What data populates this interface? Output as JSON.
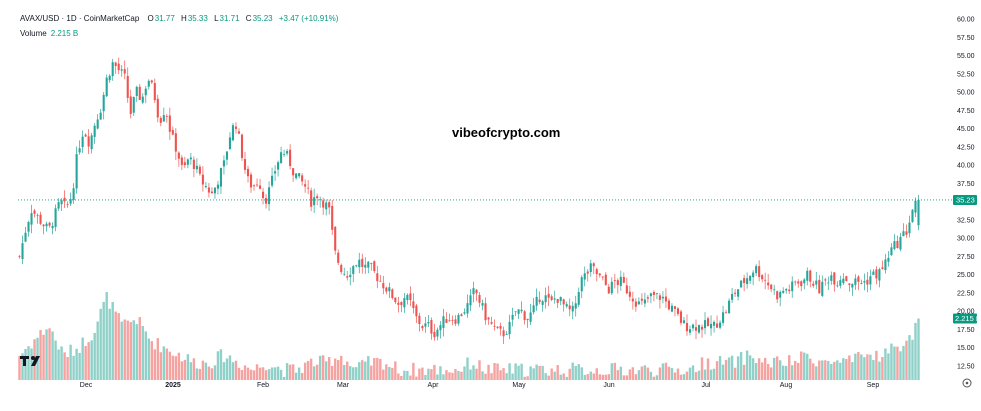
{
  "legend": {
    "symbol": "AVAX/USD · 1D · CoinMarketCap",
    "o_label": "O",
    "o": "31.77",
    "h_label": "H",
    "h": "35.33",
    "l_label": "L",
    "l": "31.71",
    "c_label": "C",
    "c": "35.23",
    "change": "+3.47 (+10.91%)",
    "volume_label": "Volume",
    "volume_value": "2.215 B"
  },
  "watermark": "vibeofcrypto.com",
  "colors": {
    "up": "#26a69a",
    "down": "#ef5350",
    "up_vol": "#8fd1c8",
    "down_vol": "#f5a3a1",
    "last_price": "#089981",
    "grid": "#ffffff"
  },
  "chart_data": {
    "type": "candlestick",
    "ylim": [
      10,
      60
    ],
    "y_ticks": [
      "60.00",
      "57.50",
      "55.00",
      "52.50",
      "50.00",
      "47.50",
      "45.00",
      "42.50",
      "40.00",
      "37.50",
      "35.00",
      "32.50",
      "30.00",
      "27.50",
      "25.00",
      "22.50",
      "20.00",
      "17.50",
      "15.00",
      "12.50"
    ],
    "x_ticks": [
      "Dec",
      "2025",
      "Feb",
      "Mar",
      "Apr",
      "May",
      "Jun",
      "Jul",
      "Aug",
      "Sep"
    ],
    "last_price_label": "35.23",
    "volume_label": "2.215 B",
    "close_path": [
      [
        0,
        27.5
      ],
      [
        4,
        31
      ],
      [
        8,
        34
      ],
      [
        12,
        33
      ],
      [
        16,
        32
      ],
      [
        20,
        31
      ],
      [
        24,
        33
      ],
      [
        28,
        35
      ],
      [
        32,
        34
      ],
      [
        36,
        36
      ],
      [
        40,
        42
      ],
      [
        44,
        45
      ],
      [
        48,
        43
      ],
      [
        52,
        46
      ],
      [
        56,
        48
      ],
      [
        60,
        52
      ],
      [
        64,
        54
      ],
      [
        68,
        53
      ],
      [
        72,
        52
      ],
      [
        76,
        47
      ],
      [
        80,
        50
      ],
      [
        84,
        49
      ],
      [
        88,
        52
      ],
      [
        92,
        50
      ],
      [
        96,
        46
      ],
      [
        100,
        48
      ],
      [
        104,
        44
      ],
      [
        108,
        42
      ],
      [
        112,
        39
      ],
      [
        116,
        41
      ],
      [
        120,
        40
      ],
      [
        124,
        38
      ],
      [
        128,
        37
      ],
      [
        132,
        36
      ],
      [
        136,
        38
      ],
      [
        140,
        40
      ],
      [
        144,
        44
      ],
      [
        148,
        46
      ],
      [
        152,
        42
      ],
      [
        156,
        38
      ],
      [
        160,
        37
      ],
      [
        164,
        38
      ],
      [
        168,
        35
      ],
      [
        172,
        37
      ],
      [
        176,
        40
      ],
      [
        180,
        42
      ],
      [
        184,
        41
      ],
      [
        188,
        39
      ],
      [
        192,
        38
      ],
      [
        196,
        37
      ],
      [
        200,
        35
      ],
      [
        204,
        36
      ],
      [
        208,
        35
      ],
      [
        212,
        34
      ],
      [
        216,
        28
      ],
      [
        220,
        26
      ],
      [
        224,
        25
      ],
      [
        228,
        26
      ],
      [
        232,
        27
      ],
      [
        236,
        26
      ],
      [
        240,
        26
      ],
      [
        244,
        25
      ],
      [
        248,
        24
      ],
      [
        252,
        23
      ],
      [
        256,
        22
      ],
      [
        260,
        21
      ],
      [
        264,
        22
      ],
      [
        268,
        21
      ],
      [
        272,
        19
      ],
      [
        276,
        18
      ],
      [
        280,
        18
      ],
      [
        284,
        17
      ],
      [
        288,
        18
      ],
      [
        292,
        19
      ],
      [
        296,
        19
      ],
      [
        300,
        19
      ],
      [
        304,
        20
      ],
      [
        308,
        21
      ],
      [
        312,
        23
      ],
      [
        316,
        21
      ],
      [
        320,
        19
      ],
      [
        324,
        18
      ],
      [
        328,
        17
      ],
      [
        332,
        17
      ],
      [
        336,
        18
      ],
      [
        340,
        20
      ],
      [
        344,
        20
      ],
      [
        348,
        19
      ],
      [
        352,
        20
      ],
      [
        356,
        22
      ],
      [
        360,
        22
      ],
      [
        364,
        21
      ],
      [
        368,
        22
      ],
      [
        372,
        21
      ],
      [
        376,
        20
      ],
      [
        380,
        20
      ],
      [
        384,
        24
      ],
      [
        388,
        25
      ],
      [
        392,
        26
      ],
      [
        396,
        25
      ],
      [
        400,
        24
      ],
      [
        404,
        23
      ],
      [
        408,
        24
      ],
      [
        412,
        24
      ],
      [
        416,
        23
      ],
      [
        420,
        22
      ],
      [
        424,
        21
      ],
      [
        428,
        21
      ],
      [
        432,
        22
      ],
      [
        436,
        22
      ],
      [
        440,
        22
      ],
      [
        444,
        21
      ],
      [
        448,
        20
      ],
      [
        452,
        19
      ],
      [
        456,
        18
      ],
      [
        460,
        18
      ],
      [
        464,
        18
      ],
      [
        468,
        18
      ],
      [
        472,
        18
      ],
      [
        476,
        18
      ],
      [
        480,
        19
      ],
      [
        484,
        20
      ],
      [
        488,
        22
      ],
      [
        492,
        23
      ],
      [
        496,
        24
      ],
      [
        500,
        25
      ],
      [
        504,
        26
      ],
      [
        508,
        25
      ],
      [
        512,
        24
      ],
      [
        516,
        23
      ],
      [
        520,
        22
      ],
      [
        524,
        23
      ],
      [
        528,
        23
      ],
      [
        532,
        24
      ],
      [
        536,
        24
      ],
      [
        540,
        25
      ],
      [
        544,
        24
      ],
      [
        548,
        23
      ],
      [
        552,
        24
      ],
      [
        556,
        25
      ],
      [
        560,
        24
      ],
      [
        564,
        25
      ],
      [
        568,
        24
      ],
      [
        572,
        24
      ],
      [
        576,
        24
      ],
      [
        580,
        24
      ],
      [
        584,
        25
      ],
      [
        588,
        25
      ],
      [
        592,
        26
      ],
      [
        596,
        28
      ],
      [
        600,
        29
      ],
      [
        604,
        30
      ],
      [
        608,
        31
      ],
      [
        612,
        34
      ],
      [
        616,
        35.2
      ]
    ],
    "volume_path": [
      [
        0,
        14
      ],
      [
        10,
        16
      ],
      [
        20,
        18
      ],
      [
        30,
        14
      ],
      [
        40,
        15
      ],
      [
        50,
        17
      ],
      [
        60,
        22
      ],
      [
        70,
        18
      ],
      [
        80,
        19
      ],
      [
        90,
        16
      ],
      [
        100,
        15
      ],
      [
        110,
        14
      ],
      [
        120,
        13
      ],
      [
        130,
        13
      ],
      [
        140,
        14
      ],
      [
        150,
        13
      ],
      [
        160,
        12
      ],
      [
        170,
        13
      ],
      [
        180,
        12
      ],
      [
        190,
        12
      ],
      [
        200,
        13
      ],
      [
        210,
        13
      ],
      [
        220,
        14
      ],
      [
        230,
        12
      ],
      [
        240,
        13
      ],
      [
        250,
        13
      ],
      [
        260,
        12
      ],
      [
        270,
        12
      ],
      [
        280,
        12
      ],
      [
        290,
        12
      ],
      [
        300,
        12
      ],
      [
        310,
        13
      ],
      [
        320,
        12
      ],
      [
        330,
        12
      ],
      [
        340,
        12
      ],
      [
        350,
        12
      ],
      [
        360,
        12
      ],
      [
        370,
        12
      ],
      [
        380,
        12
      ],
      [
        390,
        12
      ],
      [
        400,
        12
      ],
      [
        410,
        12
      ],
      [
        420,
        12
      ],
      [
        430,
        12
      ],
      [
        440,
        12
      ],
      [
        450,
        12
      ],
      [
        460,
        12
      ],
      [
        470,
        13
      ],
      [
        480,
        13
      ],
      [
        490,
        13
      ],
      [
        500,
        14
      ],
      [
        510,
        13
      ],
      [
        520,
        13
      ],
      [
        530,
        13
      ],
      [
        540,
        14
      ],
      [
        550,
        13
      ],
      [
        560,
        13
      ],
      [
        570,
        13
      ],
      [
        580,
        14
      ],
      [
        590,
        14
      ],
      [
        600,
        15
      ],
      [
        610,
        16
      ],
      [
        616,
        19
      ]
    ]
  }
}
